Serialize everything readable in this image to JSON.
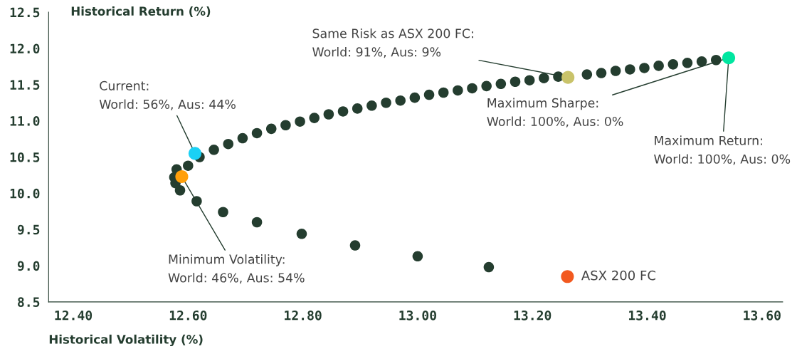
{
  "chart_data": {
    "type": "scatter",
    "xlabel": "Historical Volatility (%)",
    "ylabel": "Historical Return (%)",
    "xlim": [
      12.357,
      13.636
    ],
    "xticks": [
      {
        "value": 12.4,
        "label": "12.40"
      },
      {
        "value": 12.6,
        "label": "12.60"
      },
      {
        "value": 12.8,
        "label": "12.80"
      },
      {
        "value": 13.0,
        "label": "13.00"
      },
      {
        "value": 13.2,
        "label": "13.20"
      },
      {
        "value": 13.4,
        "label": "13.40"
      },
      {
        "value": 13.6,
        "label": "13.60"
      }
    ],
    "ylim": [
      8.5,
      12.5
    ],
    "yticks": [
      {
        "value": 8.5,
        "label": "8.5"
      },
      {
        "value": 9.0,
        "label": "9.0"
      },
      {
        "value": 9.5,
        "label": "9.5"
      },
      {
        "value": 10.0,
        "label": "10.0"
      },
      {
        "value": 10.5,
        "label": "10.5"
      },
      {
        "value": 11.0,
        "label": "11.0"
      },
      {
        "value": 11.5,
        "label": "11.5"
      },
      {
        "value": 12.0,
        "label": "12.0"
      },
      {
        "value": 12.5,
        "label": "12.5"
      }
    ],
    "grid": false,
    "legend": false,
    "marker": "circle",
    "series": [
      {
        "color": "#243d2f",
        "x": [
          13.124,
          13.0,
          12.891,
          12.798,
          12.72,
          12.661,
          12.615,
          12.586,
          12.578,
          12.576,
          12.58,
          12.6,
          12.62,
          12.645,
          12.67,
          12.695,
          12.72,
          12.745,
          12.77,
          12.795,
          12.82,
          12.845,
          12.87,
          12.895,
          12.92,
          12.945,
          12.97,
          12.995,
          13.02,
          13.045,
          13.07,
          13.095,
          13.12,
          13.145,
          13.17,
          13.195,
          13.22,
          13.245,
          13.295,
          13.32,
          13.345,
          13.37,
          13.395,
          13.42,
          13.445,
          13.47,
          13.495,
          13.52
        ],
        "values": [
          8.98,
          9.13,
          9.28,
          9.44,
          9.6,
          9.74,
          9.89,
          10.04,
          10.14,
          10.22,
          10.33,
          10.38,
          10.5,
          10.6,
          10.68,
          10.76,
          10.83,
          10.89,
          10.94,
          10.99,
          11.04,
          11.09,
          11.13,
          11.17,
          11.21,
          11.25,
          11.28,
          11.32,
          11.36,
          11.39,
          11.42,
          11.45,
          11.48,
          11.51,
          11.54,
          11.56,
          11.59,
          11.61,
          11.64,
          11.66,
          11.69,
          11.71,
          11.73,
          11.76,
          11.78,
          11.8,
          11.82,
          11.84
        ]
      },
      {
        "x": [
          12.612,
          12.589,
          13.262,
          13.542
        ],
        "values": [
          10.55,
          10.23,
          11.6,
          11.87
        ],
        "colors": [
          "#1ad1f5",
          "#ff9f0a",
          "#c9c36a",
          "#00e6a0"
        ]
      },
      {
        "name": "ASX 200 FC",
        "color": "#f2591f",
        "x": [
          13.261
        ],
        "values": [
          8.85
        ]
      }
    ],
    "annotations": [
      {
        "text": "Current:\nWorld: 56%, Aus: 44%",
        "x": 12.612,
        "y": 10.55
      },
      {
        "text": "Minimum Volatility:\nWorld: 46%, Aus: 54%",
        "x": 12.589,
        "y": 10.23
      },
      {
        "text": "Same Risk as ASX 200 FC:\nWorld: 91%, Aus: 9%",
        "x": 13.262,
        "y": 11.6
      },
      {
        "text": "Maximum Sharpe:\nWorld: 100%, Aus: 0%",
        "x": 13.542,
        "y": 11.87
      },
      {
        "text": "Maximum Return:\nWorld: 100%, Aus: 0%",
        "x": 13.542,
        "y": 11.87
      }
    ]
  }
}
